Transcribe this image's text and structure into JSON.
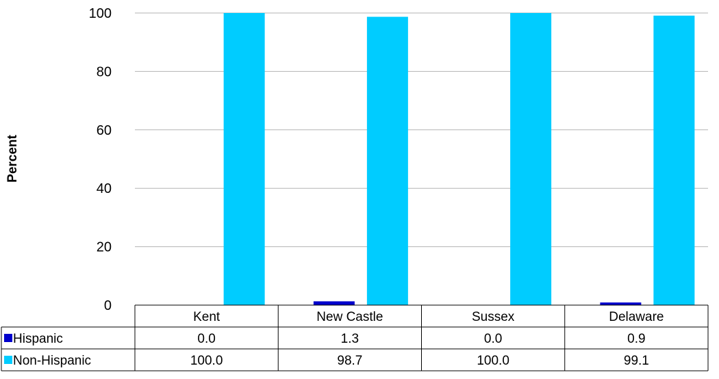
{
  "chart_data": {
    "type": "bar",
    "title": "",
    "xlabel": "",
    "ylabel": "Percent",
    "ylim": [
      0,
      100
    ],
    "yticks": [
      0,
      20,
      40,
      60,
      80,
      100
    ],
    "grid": true,
    "legend_placement": "data-table-left",
    "categories": [
      "Kent",
      "New Castle",
      "Sussex",
      "Delaware"
    ],
    "series": [
      {
        "name": "Hispanic",
        "color": "#0000cc",
        "values": [
          0.0,
          1.3,
          0.0,
          0.9
        ],
        "labels": [
          "0.0",
          "1.3",
          "0.0",
          "0.9"
        ]
      },
      {
        "name": "Non-Hispanic",
        "color": "#00ccff",
        "values": [
          100.0,
          98.7,
          100.0,
          99.1
        ],
        "labels": [
          "100.0",
          "98.7",
          "100.0",
          "99.1"
        ]
      }
    ]
  }
}
